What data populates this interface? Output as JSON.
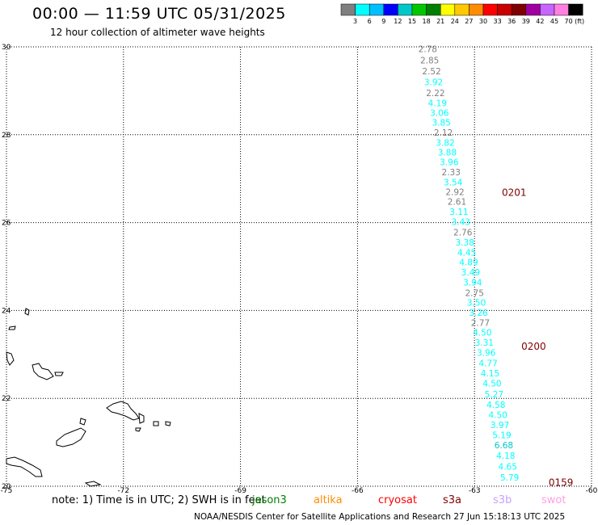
{
  "header": {
    "title": "00:00 — 11:59 UTC 05/31/2025",
    "subtitle": "12 hour collection of altimeter wave heights"
  },
  "colorbar": {
    "unit": "(ft)",
    "ticks": [
      "3",
      "6",
      "9",
      "12",
      "15",
      "18",
      "21",
      "24",
      "27",
      "30",
      "33",
      "36",
      "39",
      "42",
      "45",
      "70"
    ],
    "colors": [
      "#7f7f7f",
      "#00ffff",
      "#00bfff",
      "#0000ff",
      "#00c8c8",
      "#00c800",
      "#008000",
      "#ffff00",
      "#ffc800",
      "#ff8c00",
      "#ff0000",
      "#c80000",
      "#800000",
      "#a000a0",
      "#c864ff",
      "#ff80e0",
      "#000000"
    ]
  },
  "footer": {
    "note": "note: 1) Time is in UTC; 2) SWH is in feet",
    "credit": "NOAA/NESDIS Center for Satellite Applications and Research   27 Jun 15:18:13 UTC 2025",
    "missions": [
      {
        "name": "jason3",
        "color": "#008000"
      },
      {
        "name": "altika",
        "color": "#ff8c00"
      },
      {
        "name": "cryosat",
        "color": "#ff0000"
      },
      {
        "name": "s3a",
        "color": "#800000"
      },
      {
        "name": "s3b",
        "color": "#c8a0ff"
      },
      {
        "name": "swot",
        "color": "#ffa0e0"
      }
    ]
  },
  "chart_data": {
    "type": "scatter",
    "xlim": [
      -75,
      -60
    ],
    "ylim": [
      20,
      30
    ],
    "xticks": [
      "-75",
      "-72",
      "-69",
      "-66",
      "-63",
      "-60"
    ],
    "yticks": [
      "20",
      "22",
      "24",
      "26",
      "28",
      "30"
    ],
    "grid": true,
    "legend": "bottom",
    "time_labels": [
      {
        "text": "0201",
        "lon": -62.3,
        "lat": 26.7,
        "color": "#800000"
      },
      {
        "text": "0200",
        "lon": -61.8,
        "lat": 23.2,
        "color": "#800000"
      },
      {
        "text": "0159",
        "lon": -61.1,
        "lat": 20.1,
        "color": "#800000"
      }
    ],
    "series": [
      {
        "colors": [
          "#7f7f7f",
          "#7f7f7f",
          "#7f7f7f",
          "#00ffff",
          "#7f7f7f",
          "#00ffff",
          "#00ffff",
          "#00ffff",
          "#7f7f7f",
          "#00ffff",
          "#00ffff",
          "#00ffff",
          "#7f7f7f",
          "#00ffff",
          "#7f7f7f",
          "#7f7f7f",
          "#00ffff",
          "#00ffff",
          "#7f7f7f",
          "#00ffff",
          "#00ffff",
          "#00ffff",
          "#00ffff",
          "#00ffff",
          "#7f7f7f",
          "#00ffff",
          "#00ffff",
          "#7f7f7f",
          "#00ffff",
          "#00ffff",
          "#00ffff",
          "#00ffff",
          "#00ffff",
          "#00ffff",
          "#00ffff",
          "#00ffff",
          "#00ffff",
          "#00ffff",
          "#00ffff",
          "#00c8c8",
          "#00ffff",
          "#00ffff",
          "#00ffff"
        ],
        "lon": [
          -64.2,
          -64.15,
          -64.1,
          -64.05,
          -64.0,
          -63.95,
          -63.9,
          -63.85,
          -63.8,
          -63.75,
          -63.7,
          -63.65,
          -63.6,
          -63.55,
          -63.5,
          -63.45,
          -63.4,
          -63.35,
          -63.3,
          -63.25,
          -63.2,
          -63.15,
          -63.1,
          -63.05,
          -63.0,
          -62.95,
          -62.9,
          -62.85,
          -62.8,
          -62.75,
          -62.7,
          -62.65,
          -62.6,
          -62.55,
          -62.5,
          -62.45,
          -62.4,
          -62.35,
          -62.3,
          -62.25,
          -62.2,
          -62.15,
          -62.1
        ],
        "lat": [
          29.95,
          29.7,
          29.45,
          29.2,
          28.95,
          28.72,
          28.5,
          28.28,
          28.05,
          27.82,
          27.6,
          27.38,
          27.15,
          26.92,
          26.7,
          26.48,
          26.25,
          26.02,
          25.78,
          25.55,
          25.32,
          25.1,
          24.87,
          24.64,
          24.4,
          24.18,
          23.95,
          23.72,
          23.5,
          23.27,
          23.04,
          22.8,
          22.57,
          22.34,
          22.1,
          21.86,
          21.63,
          21.4,
          21.17,
          20.94,
          20.7,
          20.45,
          20.2
        ],
        "values": [
          2.78,
          2.85,
          2.52,
          3.92,
          2.22,
          4.19,
          3.06,
          3.85,
          2.12,
          3.82,
          3.88,
          3.96,
          2.33,
          3.54,
          2.92,
          2.61,
          3.11,
          3.43,
          2.76,
          3.38,
          4.45,
          4.89,
          3.49,
          3.94,
          2.75,
          3.5,
          3.26,
          2.77,
          4.5,
          3.31,
          3.96,
          4.77,
          4.15,
          4.5,
          5.27,
          4.58,
          4.5,
          3.97,
          5.19,
          6.68,
          4.18,
          4.65,
          5.79
        ]
      }
    ]
  }
}
